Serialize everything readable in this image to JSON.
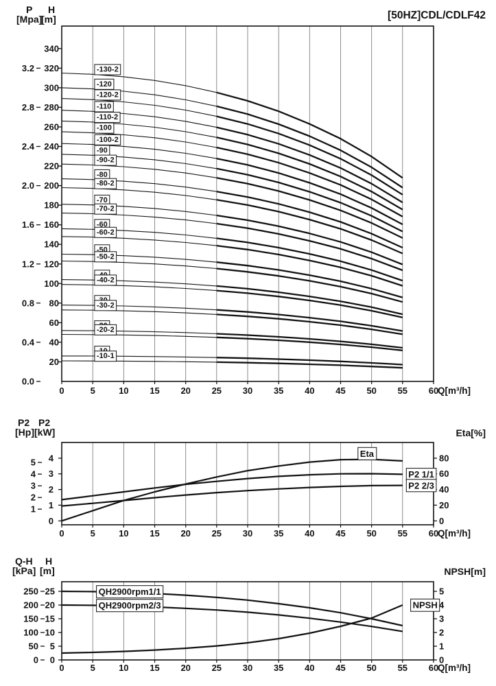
{
  "chart_data": [
    {
      "id": "qh-main",
      "type": "line",
      "title": "[50HZ]CDL/CDLF42",
      "xlabel": "Q[m³/h]",
      "xlim": [
        0,
        60
      ],
      "x_ticks": [
        0,
        5,
        10,
        15,
        20,
        25,
        30,
        35,
        40,
        45,
        50,
        55,
        60
      ],
      "grid": "vertical",
      "y_axes": [
        {
          "name": "P",
          "unit": "[Mpa]",
          "ticks": [
            "0.0",
            "0.4",
            "0.8",
            "1.2",
            "1.6",
            "2.0",
            "2.4",
            "2.8",
            "3.2"
          ],
          "factor": 100
        },
        {
          "name": "H",
          "unit": "[m]",
          "ticks": [
            20,
            40,
            60,
            80,
            100,
            120,
            140,
            160,
            180,
            200,
            220,
            240,
            260,
            280,
            300,
            320,
            340
          ],
          "factor": 1
        }
      ],
      "q": [
        0,
        5,
        10,
        15,
        20,
        25,
        30,
        35,
        40,
        45,
        50,
        55
      ],
      "shape": [
        1.0,
        0.996,
        0.988,
        0.976,
        0.959,
        0.937,
        0.91,
        0.876,
        0.835,
        0.787,
        0.729,
        0.66
      ],
      "series_label_default": {
        "q": 5.3,
        "align": "above"
      },
      "series": [
        {
          "label": "-130-2",
          "h0": 315
        },
        {
          "label": "-120",
          "h0": 300
        },
        {
          "label": "-120-2",
          "h0": 289
        },
        {
          "label": "-110",
          "h0": 277
        },
        {
          "label": "-110-2",
          "h0": 266
        },
        {
          "label": "-100",
          "h0": 255
        },
        {
          "label": "-100-2",
          "h0": 243
        },
        {
          "label": "-90",
          "h0": 232
        },
        {
          "label": "-90-2",
          "h0": 222
        },
        {
          "label": "-80",
          "h0": 207
        },
        {
          "label": "-80-2",
          "h0": 198
        },
        {
          "label": "-70",
          "h0": 181
        },
        {
          "label": "-70-2",
          "h0": 172
        },
        {
          "label": "-60",
          "h0": 156
        },
        {
          "label": "-60-2",
          "h0": 148
        },
        {
          "label": "-50",
          "h0": 130
        },
        {
          "label": "-50-2",
          "h0": 123
        },
        {
          "label": "-40",
          "h0": 104
        },
        {
          "label": "-40-2",
          "h0": 99
        },
        {
          "label": "-30",
          "h0": 78
        },
        {
          "label": "-30-2",
          "h0": 73
        },
        {
          "label": "-20",
          "h0": 52
        },
        {
          "label": "-20-2",
          "h0": 48
        },
        {
          "label": "-10",
          "h0": 26
        },
        {
          "label": "-10-1",
          "h0": 21
        }
      ]
    },
    {
      "id": "power-eta",
      "type": "line",
      "xlabel": "Q[m³/h]",
      "xlim": [
        0,
        60
      ],
      "x_ticks": [
        0,
        5,
        10,
        15,
        20,
        25,
        30,
        35,
        40,
        45,
        50,
        55,
        60
      ],
      "grid": "vertical",
      "y_axes": [
        {
          "name": "P2",
          "unit": "[Hp]",
          "ticks": [
            1,
            2,
            3,
            4,
            5
          ],
          "factor": 0.7457
        },
        {
          "name": "P2",
          "unit": "[kW]",
          "ticks": [
            0,
            1,
            2,
            3,
            4
          ],
          "factor": 1
        },
        {
          "name": "Eta[%]",
          "unit": "",
          "side": "right",
          "ticks": [
            0,
            20,
            40,
            60,
            80
          ],
          "factor": 0.05
        }
      ],
      "q": [
        0,
        5,
        10,
        15,
        20,
        25,
        30,
        35,
        40,
        45,
        50,
        55
      ],
      "series": [
        {
          "label": "Eta",
          "values": [
            0,
            13,
            26,
            37,
            47,
            56,
            64,
            70,
            75,
            78,
            78.5,
            76.5
          ],
          "factor": 0.05,
          "label_pos": {
            "q": 47.8,
            "align": "above"
          }
        },
        {
          "label": "P2 1/1",
          "values": [
            1.35,
            1.6,
            1.85,
            2.1,
            2.33,
            2.52,
            2.7,
            2.84,
            2.94,
            3.0,
            3.01,
            2.97
          ],
          "factor": 1,
          "label_pos": {
            "q": 55.6,
            "align": "center"
          }
        },
        {
          "label": "P2 2/3",
          "values": [
            0.95,
            1.12,
            1.3,
            1.48,
            1.65,
            1.8,
            1.93,
            2.04,
            2.13,
            2.2,
            2.25,
            2.26
          ],
          "factor": 1,
          "label_pos": {
            "q": 55.6,
            "align": "center"
          }
        }
      ]
    },
    {
      "id": "qh-npsh",
      "type": "line",
      "xlabel": "Q[m³/h]",
      "xlim": [
        0,
        60
      ],
      "x_ticks": [
        0,
        5,
        10,
        15,
        20,
        25,
        30,
        35,
        40,
        45,
        50,
        55,
        60
      ],
      "grid": "vertical",
      "y_axes": [
        {
          "name": "Q-H",
          "unit": "[kPa]",
          "ticks": [
            0,
            50,
            100,
            150,
            200,
            250
          ],
          "factor": 0.1
        },
        {
          "name": "H",
          "unit": "[m]",
          "ticks": [
            0,
            5,
            10,
            15,
            20,
            25
          ],
          "factor": 1
        },
        {
          "name": "NPSH[m]",
          "unit": "",
          "side": "right",
          "ticks": [
            0,
            1,
            2,
            3,
            4,
            5
          ],
          "factor": 5
        }
      ],
      "q": [
        0,
        5,
        10,
        15,
        20,
        25,
        30,
        35,
        40,
        45,
        50,
        55
      ],
      "series": [
        {
          "label": "QH2900rpm1/1",
          "values": [
            25,
            24.9,
            24.6,
            24.2,
            23.6,
            22.8,
            21.8,
            20.5,
            19.0,
            17.2,
            15.0,
            12.5
          ],
          "factor": 1,
          "label_pos": {
            "q": 5.6,
            "align": "center"
          }
        },
        {
          "label": "QH2900rpm2/3",
          "values": [
            20,
            19.9,
            19.7,
            19.3,
            18.8,
            18.2,
            17.4,
            16.4,
            15.2,
            13.8,
            12.2,
            10.4
          ],
          "factor": 1,
          "label_pos": {
            "q": 5.6,
            "align": "center"
          }
        },
        {
          "label": "NPSH",
          "values": [
            0.5,
            0.55,
            0.62,
            0.72,
            0.85,
            1.02,
            1.25,
            1.55,
            1.95,
            2.45,
            3.05,
            4.0
          ],
          "factor": 5,
          "label_pos": {
            "q": 56.3,
            "align": "center"
          }
        }
      ]
    }
  ]
}
